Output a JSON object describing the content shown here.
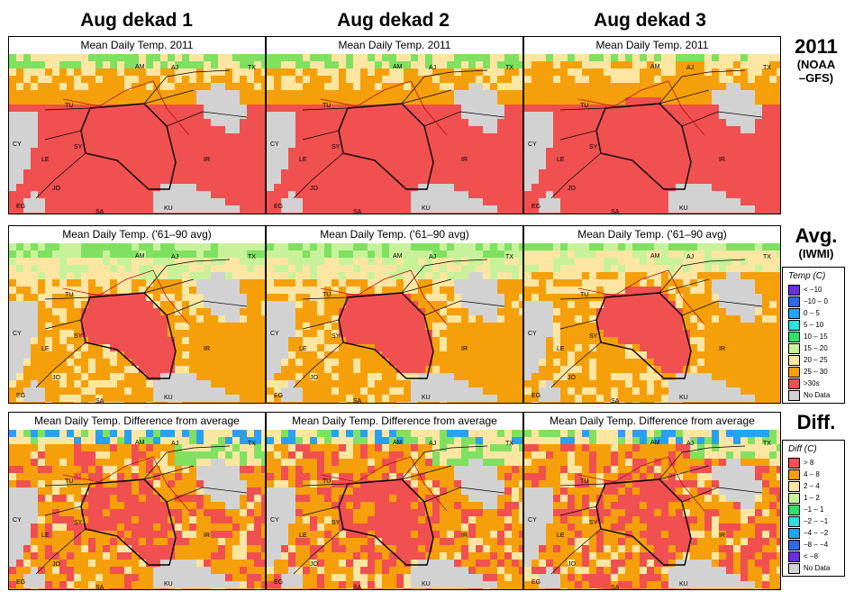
{
  "columns": [
    "Aug dekad 1",
    "Aug dekad 2",
    "Aug dekad 3"
  ],
  "rows": [
    {
      "title": "Mean Daily Temp. 2011",
      "label": "2011",
      "sublabel": "(NOAA\n–GFS)",
      "kind": "obs",
      "palette": [
        "#f05050",
        "#f05050",
        "#f5a00a",
        "#f05050",
        "#f5a00a",
        "#fce6a2",
        "#80e060"
      ]
    },
    {
      "title": "Mean Daily Temp. ('61–90 avg)",
      "label": "Avg.",
      "sublabel": "(IWMI)",
      "kind": "avg",
      "palette": [
        "#f05050",
        "#f5a00a",
        "#f5a00a",
        "#fce6a2",
        "#fce6a2",
        "#c8f29a",
        "#80e060"
      ]
    },
    {
      "title": "Mean Daily Temp. Difference from average",
      "label": "Diff.",
      "sublabel": "",
      "kind": "diff",
      "palette": [
        "#f05050",
        "#f05050",
        "#f5a00a",
        "#f5a00a",
        "#fce6a2",
        "#80e060",
        "#2aa0f0"
      ]
    }
  ],
  "temp_legend": {
    "title": "Temp (C)",
    "items": [
      {
        "label": "< −10",
        "color": "#6a2de0"
      },
      {
        "label": "−10 – 0",
        "color": "#2a6af0"
      },
      {
        "label": "0 – 5",
        "color": "#21a5f0"
      },
      {
        "label": "5 – 10",
        "color": "#2adfdf"
      },
      {
        "label": "10 – 15",
        "color": "#2ae26a"
      },
      {
        "label": "15 – 20",
        "color": "#c8f29a"
      },
      {
        "label": "20 – 25",
        "color": "#fce6a2"
      },
      {
        "label": "25 – 30",
        "color": "#f5a00a"
      },
      {
        "label": ">30s",
        "color": "#f05050"
      },
      {
        "label": "No Data",
        "color": "#d2d2d2"
      }
    ]
  },
  "diff_legend": {
    "title": "Diff (C)",
    "items": [
      {
        "label": "> 8",
        "color": "#f05050"
      },
      {
        "label": "4 – 8",
        "color": "#f5a00a"
      },
      {
        "label": "2 – 4",
        "color": "#fce6a2"
      },
      {
        "label": "1 – 2",
        "color": "#c8f29a"
      },
      {
        "label": "−1 – 1",
        "color": "#2ae26a"
      },
      {
        "label": "−2 – −1",
        "color": "#2adfdf"
      },
      {
        "label": "−4 – −2",
        "color": "#21a5f0"
      },
      {
        "label": "−8 – −4",
        "color": "#2a6af0"
      },
      {
        "label": "< −8",
        "color": "#6a2de0"
      },
      {
        "label": "No Data",
        "color": "#d2d2d2"
      }
    ]
  },
  "map_labels": [
    "AM",
    "AJ",
    "TX",
    "TU",
    "CY",
    "SY",
    "IR",
    "LE",
    "JO",
    "EG",
    "SA",
    "KU"
  ]
}
